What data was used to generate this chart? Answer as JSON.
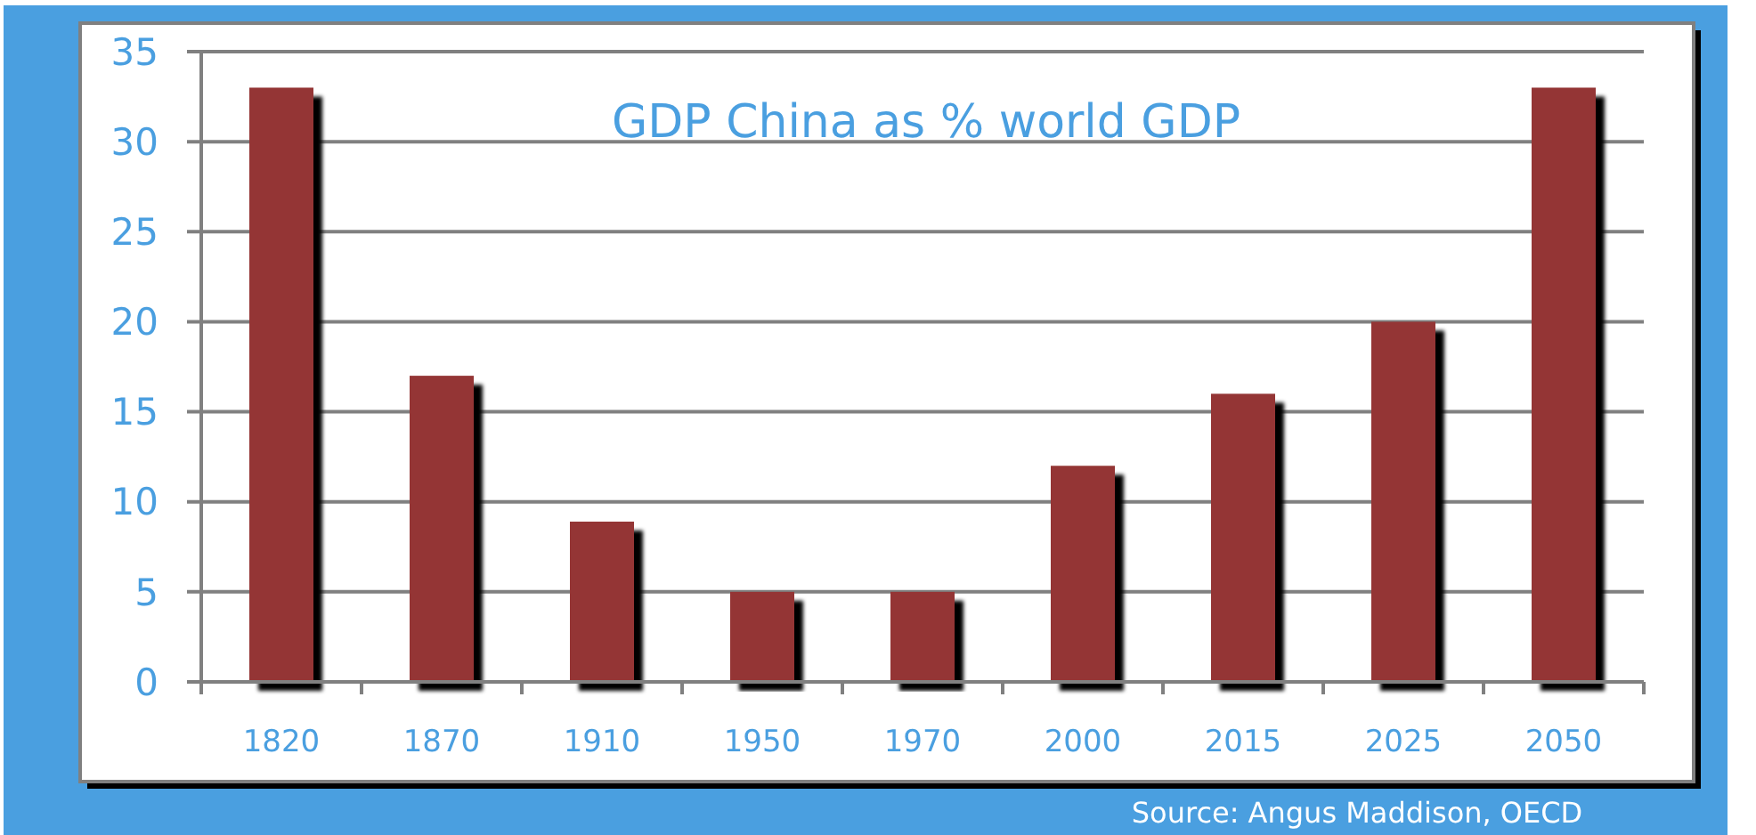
{
  "chart_data": {
    "type": "bar",
    "title": "GDP China as % world GDP",
    "categories": [
      "1820",
      "1870",
      "1910",
      "1950",
      "1970",
      "2000",
      "2015",
      "2025",
      "2050"
    ],
    "values": [
      33,
      17,
      8.9,
      5,
      5,
      12,
      16,
      20,
      33
    ],
    "color": "#943634",
    "ylim": [
      0,
      35
    ],
    "yticks": [
      0,
      5,
      10,
      15,
      20,
      25,
      30,
      35
    ],
    "grid": "y",
    "annotations": [
      "Source: Angus Maddison, OECD"
    ]
  }
}
